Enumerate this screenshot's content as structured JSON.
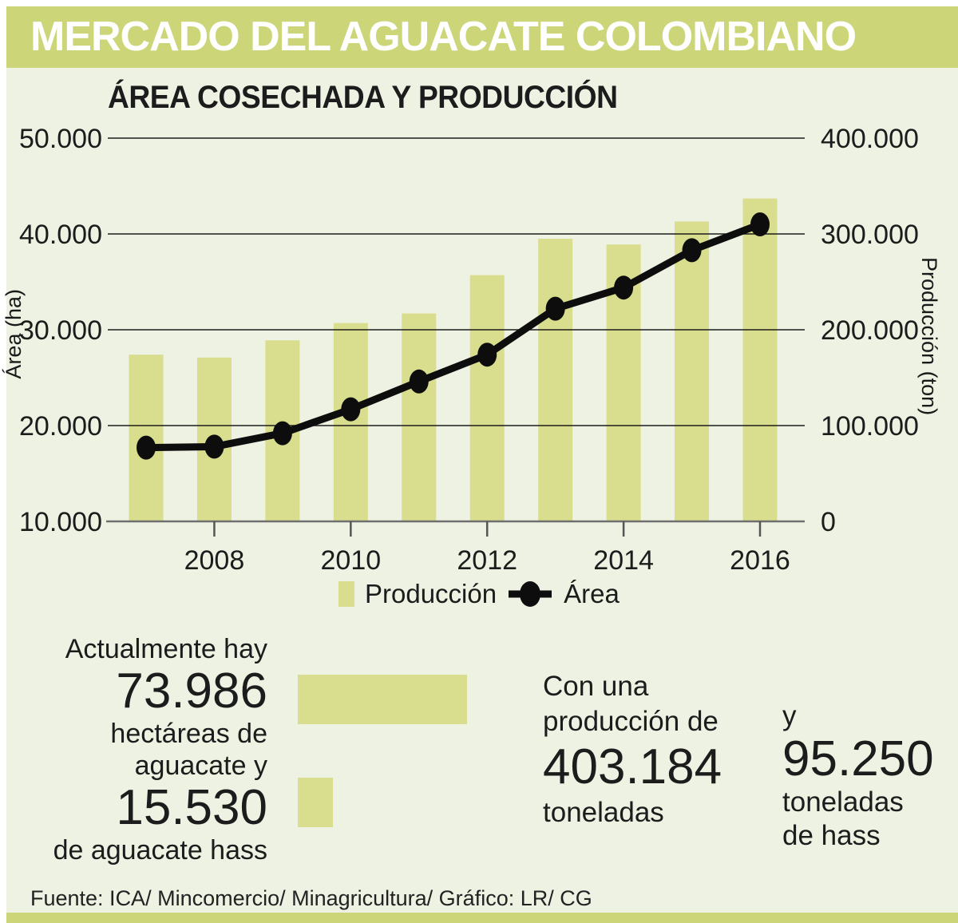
{
  "header": {
    "title": "MERCADO DEL AGUACATE COLOMBIANO"
  },
  "chart": {
    "title": "ÁREA COSECHADA Y PRODUCCIÓN",
    "left_axis_title": "Área (ha)",
    "right_axis_title": "Producción (ton)",
    "legend": {
      "production": "Producción",
      "area": "Área"
    }
  },
  "chart_data": {
    "type": "bar+line",
    "x": [
      2007,
      2008,
      2009,
      2010,
      2011,
      2012,
      2013,
      2014,
      2015,
      2016
    ],
    "x_tick_labels": [
      "2008",
      "2010",
      "2012",
      "2014",
      "2016"
    ],
    "x_tick_years": [
      2008,
      2010,
      2012,
      2014,
      2016
    ],
    "series": [
      {
        "name": "Producción",
        "type": "bar",
        "axis": "right",
        "unit": "ton",
        "values": [
          174000,
          171000,
          189000,
          207000,
          217000,
          257000,
          295000,
          289000,
          313000,
          337000
        ]
      },
      {
        "name": "Área",
        "type": "line",
        "axis": "left",
        "unit": "ha",
        "values": [
          17700,
          17800,
          19200,
          21700,
          24600,
          27400,
          32200,
          34400,
          38300,
          41000
        ]
      }
    ],
    "left_axis": {
      "label": "Área (ha)",
      "min": 10000,
      "max": 50000,
      "tick_values": [
        50000,
        40000,
        30000,
        20000,
        10000
      ],
      "tick_labels": [
        "50.000",
        "40.000",
        "30.000",
        "20.000",
        "10.000"
      ]
    },
    "right_axis": {
      "label": "Producción (ton)",
      "min": 0,
      "max": 400000,
      "tick_values": [
        400000,
        300000,
        200000,
        100000,
        0
      ],
      "tick_labels": [
        "400.000",
        "300.000",
        "200.000",
        "100.000",
        "0"
      ]
    },
    "grid": true,
    "legend_position": "bottom"
  },
  "stats": {
    "intro": "Actualmente hay",
    "total_hectares_value": 73986,
    "total_hectares": "73.986",
    "total_hectares_caption_1": "hectáreas de",
    "total_hectares_caption_2": "aguacate y",
    "hass_hectares_value": 15530,
    "hass_hectares": "15.530",
    "hass_hectares_caption": "de aguacate hass",
    "production_intro_1": "Con una",
    "production_intro_2": "producción de",
    "production_total": "403.184",
    "production_total_caption": "toneladas",
    "conjunction": "y",
    "production_hass": "95.250",
    "production_hass_caption_1": "toneladas",
    "production_hass_caption_2": "de hass"
  },
  "footer": {
    "source": "Fuente: ICA/ Mincomercio/ Minagricultura/ Gráfico: LR/ CG"
  },
  "colors": {
    "band": "#ccd679",
    "background": "#edf2e3",
    "bar": "#d9dd8e",
    "line": "#0d0d0d",
    "gridline": "#1c1c1c",
    "axis_line": "#6f6f6f",
    "header_text": "#ffffff",
    "text": "#1c1c1c"
  }
}
